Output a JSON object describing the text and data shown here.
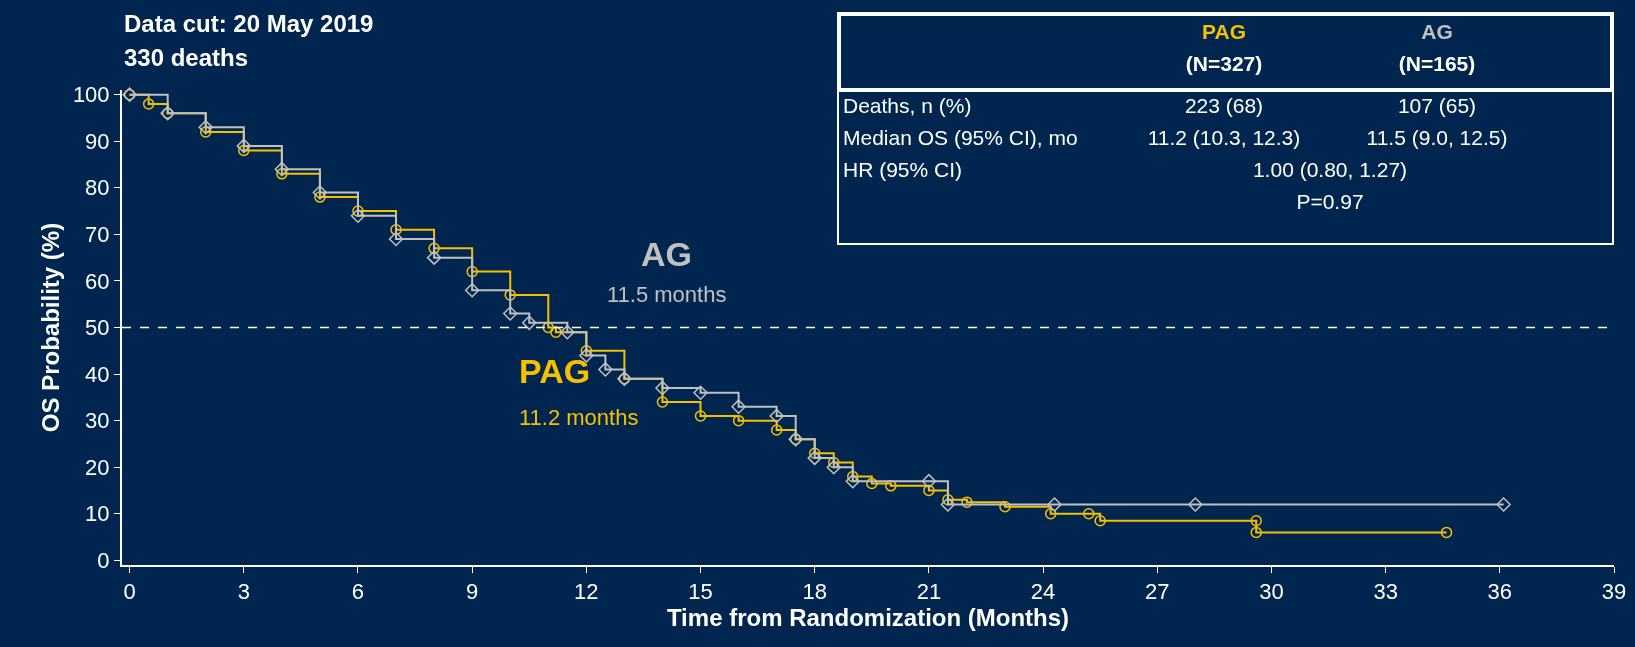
{
  "chart_data": {
    "type": "step",
    "title": "Data cut: 20 May 2019",
    "subtitle": "330 deaths",
    "xlabel": "Time from Randomization (Months)",
    "ylabel": "OS Probability (%)",
    "xlim": [
      -0.2,
      39
    ],
    "xticks": [
      0,
      3,
      6,
      9,
      12,
      15,
      18,
      21,
      24,
      27,
      30,
      33,
      36,
      39
    ],
    "ylim": [
      -1,
      101
    ],
    "yticks": [
      0,
      10,
      20,
      30,
      40,
      50,
      60,
      70,
      80,
      90,
      100
    ],
    "grid": false,
    "legend": false,
    "line_style": "solid",
    "series": [
      {
        "name": "PAG",
        "color": "#f5c000",
        "marker": "circle",
        "x": [
          0,
          0.5,
          1,
          2,
          3,
          4,
          5,
          6,
          7,
          8,
          9,
          10,
          11,
          11.2,
          12,
          13,
          14,
          15,
          16,
          17,
          17.5,
          18,
          18.5,
          19,
          19.5,
          20,
          21,
          21.5,
          22,
          23,
          24.2,
          25.2,
          25.5,
          29.6,
          29.6,
          34.6
        ],
        "values": [
          100,
          98,
          96,
          92,
          88,
          83,
          78,
          75,
          71,
          67,
          62,
          57,
          50,
          49,
          45,
          39,
          34,
          31,
          30,
          28,
          26,
          23,
          21,
          18,
          16.5,
          16,
          15,
          13,
          12.5,
          11.5,
          10,
          10,
          8.5,
          8.5,
          6,
          6
        ]
      },
      {
        "name": "AG",
        "color": "#c0c0c0",
        "marker": "diamond",
        "x": [
          0,
          1,
          2,
          3,
          4,
          5,
          6,
          7,
          8,
          9,
          10,
          10.5,
          11.5,
          12,
          12.5,
          13,
          14,
          15,
          16,
          17,
          17.5,
          18,
          18.5,
          19,
          21,
          21.5,
          24.3,
          28,
          36.1
        ],
        "values": [
          100,
          96,
          93,
          89,
          84,
          79,
          74,
          69,
          65,
          58,
          53,
          51,
          49,
          44,
          41,
          39,
          37,
          36,
          33,
          31,
          26,
          22,
          20,
          17,
          17,
          12,
          12,
          12,
          12
        ]
      }
    ],
    "ref_lines": [
      {
        "axis": "y",
        "value": 50,
        "color": "#ffffff",
        "line_style": "dashed"
      }
    ],
    "annotations": [
      "11.2 months",
      "11.5 months",
      "(N=327)",
      "(N=165)",
      "Deaths, n (%)",
      "223 (68)",
      "107 (65)",
      "Median OS (95% CI), mo",
      "11.2 (10.3, 12.3)",
      "11.5 (9.0, 12.5)",
      "HR (95% CI)",
      "1.00 (0.80, 1.27)",
      "P=0.97"
    ]
  }
}
